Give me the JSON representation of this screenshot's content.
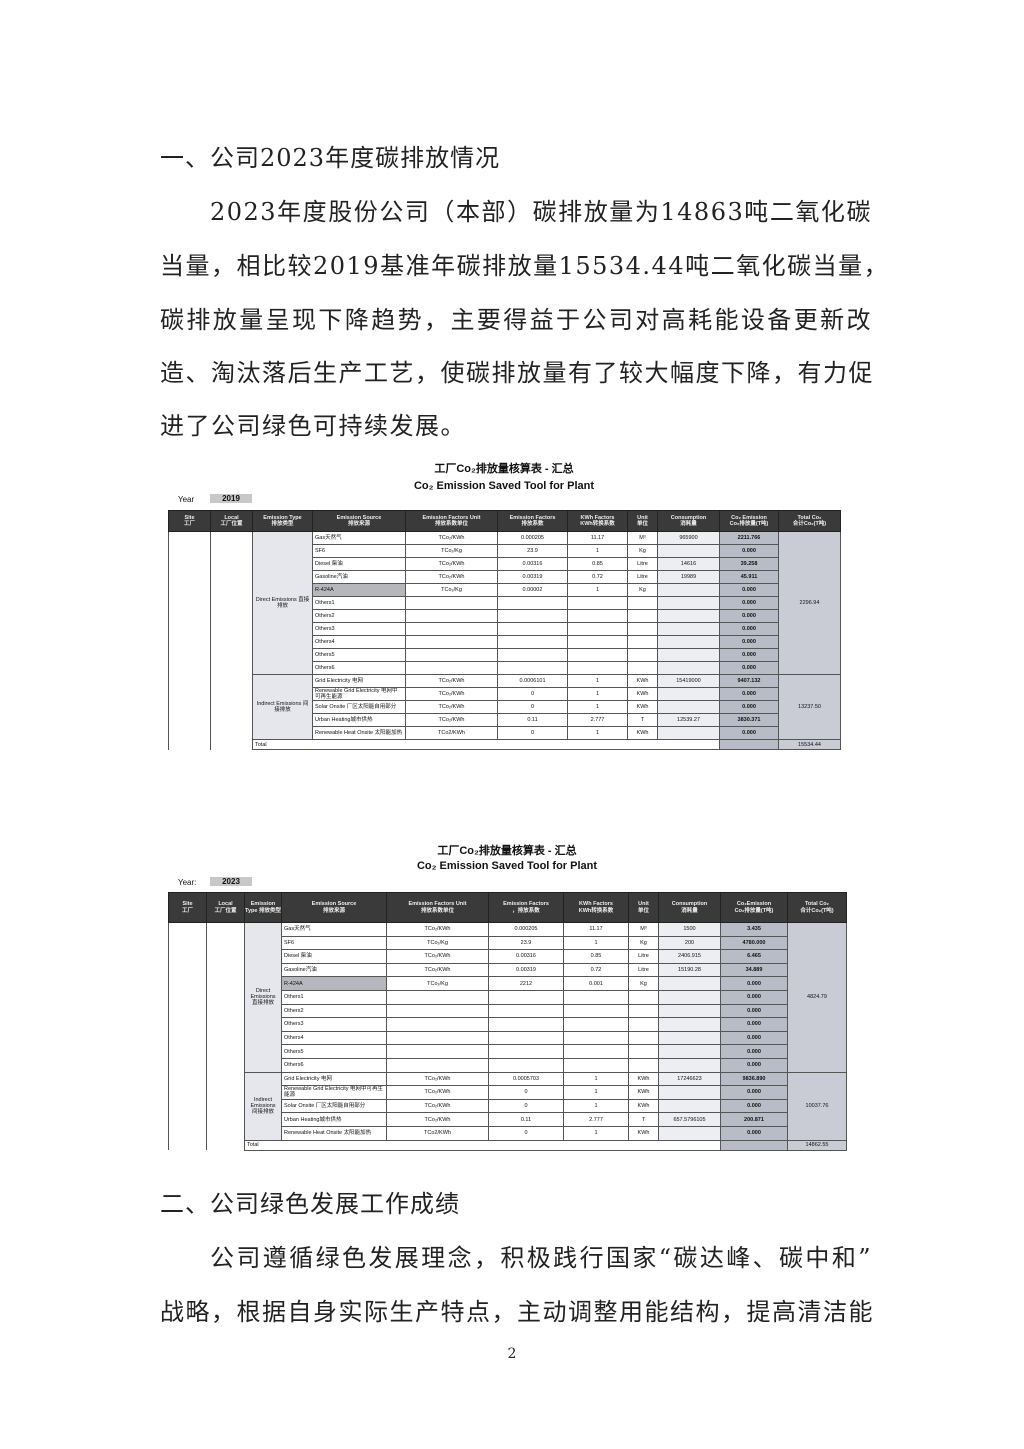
{
  "section1": {
    "heading": "一、公司2023年度碳排放情况",
    "lines": [
      "2023年度股份公司（本部）碳排放量为14863吨二氧化碳",
      "当量，相比较2019基准年碳排放量15534.44吨二氧化碳当量，",
      "碳排放量呈现下降趋势，主要得益于公司对高耗能设备更新改",
      "造、淘汰落后生产工艺，使碳排放量有了较大幅度下降，有力促",
      "进了公司绿色可持续发展。"
    ]
  },
  "tables": [
    {
      "title_cn": "工厂Co₂排放量核算表 - 汇总",
      "title_en": "Co₂ Emission Saved Tool for Plant",
      "year_label": "Year",
      "year": "2019",
      "headers": [
        "Site\n工厂",
        "Local\n工厂位置",
        "Emission Type\n排放类型",
        "Emission Source\n排放来源",
        "Emission Factors Unit\n排放系数单位",
        "Emission Factors\n排放系数",
        "KWh Factors\nKWh转换系数",
        "Unit\n单位",
        "Consumption\n消耗量",
        "Co₂ Emission\nCo₂排放量(T吨)",
        "Total Co₂\n合计Co₂(T吨)"
      ],
      "direct_label": "Direct Emissions 直接排放",
      "indirect_label": "Indirect Emissions 间接排放",
      "direct_total": "2296.94",
      "indirect_total": "13237.50",
      "total_label": "Total",
      "grand_total": "15534.44",
      "direct_rows": [
        [
          "Gas天然气",
          "TCo₂/KWh",
          "0.000205",
          "11.17",
          "M³",
          "965900",
          "2211.766"
        ],
        [
          "SF6",
          "TCo₂/Kg",
          "23.9",
          "1",
          "Kg",
          "",
          "0.000"
        ],
        [
          "Diesel 柴油",
          "TCo₂/KWh",
          "0.00316",
          "0.85",
          "Litre",
          "14616",
          "39.258"
        ],
        [
          "Gasoline汽油",
          "TCo₂/KWh",
          "0.00319",
          "0.72",
          "Litre",
          "19989",
          "45.911"
        ],
        [
          "R-424A",
          "TCo₂/Kg",
          "0.00002",
          "1",
          "Kg",
          "",
          "0.000"
        ],
        [
          "Others1",
          "",
          "",
          "",
          "",
          "",
          "0.000"
        ],
        [
          "Others2",
          "",
          "",
          "",
          "",
          "",
          "0.000"
        ],
        [
          "Others3",
          "",
          "",
          "",
          "",
          "",
          "0.000"
        ],
        [
          "Others4",
          "",
          "",
          "",
          "",
          "",
          "0.000"
        ],
        [
          "Others5",
          "",
          "",
          "",
          "",
          "",
          "0.000"
        ],
        [
          "Others6",
          "",
          "",
          "",
          "",
          "",
          "0.000"
        ]
      ],
      "indirect_rows": [
        [
          "Grid Electricity 电网",
          "TCo₂/KWh",
          "0.0006101",
          "1",
          "KWh",
          "15419000",
          "9407.132"
        ],
        [
          "Renewable Grid Electricity 电网中可再生能源",
          "TCo₂/KWh",
          "0",
          "1",
          "KWh",
          "",
          "0.000"
        ],
        [
          "Solar Onsite 厂区太阳能自用部分",
          "TCo₂/KWh",
          "0",
          "1",
          "KWh",
          "",
          "0.000"
        ],
        [
          "Urban Heating城市供热",
          "TCo₂/KWh",
          "0.11",
          "2.777",
          "T",
          "12539.27",
          "3830.371"
        ],
        [
          "Renewable Heat Onsite 太阳能加热",
          "TCo2/KWh",
          "0",
          "1",
          "KWh",
          "",
          "0.000"
        ]
      ]
    },
    {
      "title_cn": "工厂Co₂排放量核算表 - 汇总",
      "title_en": "Co₂ Emission Saved Tool for Plant",
      "year_label": "Year:",
      "year": "2023",
      "headers": [
        "Site\n工厂",
        "Local\n工厂位置",
        "Emission Type 排放类型",
        "Emission Source\n排放来源",
        "Emission Factors Unit\n排放系数单位",
        "Emission Factors\n，排放系数",
        "KWh Factors\nKWh转换系数",
        "Unit\n单位",
        "Consumption\n消耗量",
        "Co₂Emission\nCo₂排放量(T吨)",
        "Total Co₂\n合计Co₂(T吨)"
      ],
      "direct_label": "Direct Emissions 直接排放",
      "indirect_label": "Indirect Emissions 间接排放",
      "direct_total": "4824.79",
      "indirect_total": "10037.76",
      "total_label": "Total",
      "grand_total": "14862.55",
      "direct_rows": [
        [
          "Gas天然气",
          "TCo₂/KWh",
          "0.000205",
          "11.17",
          "M³",
          "1500",
          "3.435"
        ],
        [
          "SF6",
          "TCo₂/Kg",
          "23.9",
          "1",
          "Kg",
          "200",
          "4780.000"
        ],
        [
          "Diesel 柴油",
          "TCo₂/KWh",
          "0.00316",
          "0.85",
          "Litre",
          "2406.915",
          "6.465"
        ],
        [
          "Gasoline汽油",
          "TCo₂/KWh",
          "0.00319",
          "0.72",
          "Litre",
          "15190.28",
          "34.889"
        ],
        [
          "R-424A",
          "TCo₂/Kg",
          "2212",
          "0.001",
          "Kg",
          "",
          "0.000"
        ],
        [
          "Others1",
          "",
          "",
          "",
          "",
          "",
          "0.000"
        ],
        [
          "Others2",
          "",
          "",
          "",
          "",
          "",
          "0.000"
        ],
        [
          "Others3",
          "",
          "",
          "",
          "",
          "",
          "0.000"
        ],
        [
          "Others4",
          "",
          "",
          "",
          "",
          "",
          "0.000"
        ],
        [
          "Others5",
          "",
          "",
          "",
          "",
          "",
          "0.000"
        ],
        [
          "Others6",
          "",
          "",
          "",
          "",
          "",
          "0.000"
        ]
      ],
      "indirect_rows": [
        [
          "Grid Electricity 电网",
          "TCo₂/KWh",
          "0.0005703",
          "1",
          "KWh",
          "17246623",
          "9836.890"
        ],
        [
          "Renewable Grid Electricity 电网中可再生能源",
          "TCo₂/KWh",
          "0",
          "1",
          "KWh",
          "",
          "0.000"
        ],
        [
          "Solar Onsite 厂区太阳能自用部分",
          "TCo₂/KWh",
          "0",
          "1",
          "KWh",
          "",
          "0.000"
        ],
        [
          "Urban Heating城市供热",
          "TCo₂/KWh",
          "0.11",
          "2.777",
          "T",
          "657.5796105",
          "200.871"
        ],
        [
          "Renewable Heat Onsite 太阳能加热",
          "TCo2/KWh",
          "0",
          "1",
          "KWh",
          "",
          "0.000"
        ]
      ]
    }
  ],
  "section2": {
    "heading": "二、公司绿色发展工作成绩",
    "lines": [
      "公司遵循绿色发展理念，积极践行国家“碳达峰、碳中和”",
      "战略，根据自身实际生产特点，主动调整用能结构，提高清洁能"
    ]
  },
  "page_number": "2"
}
